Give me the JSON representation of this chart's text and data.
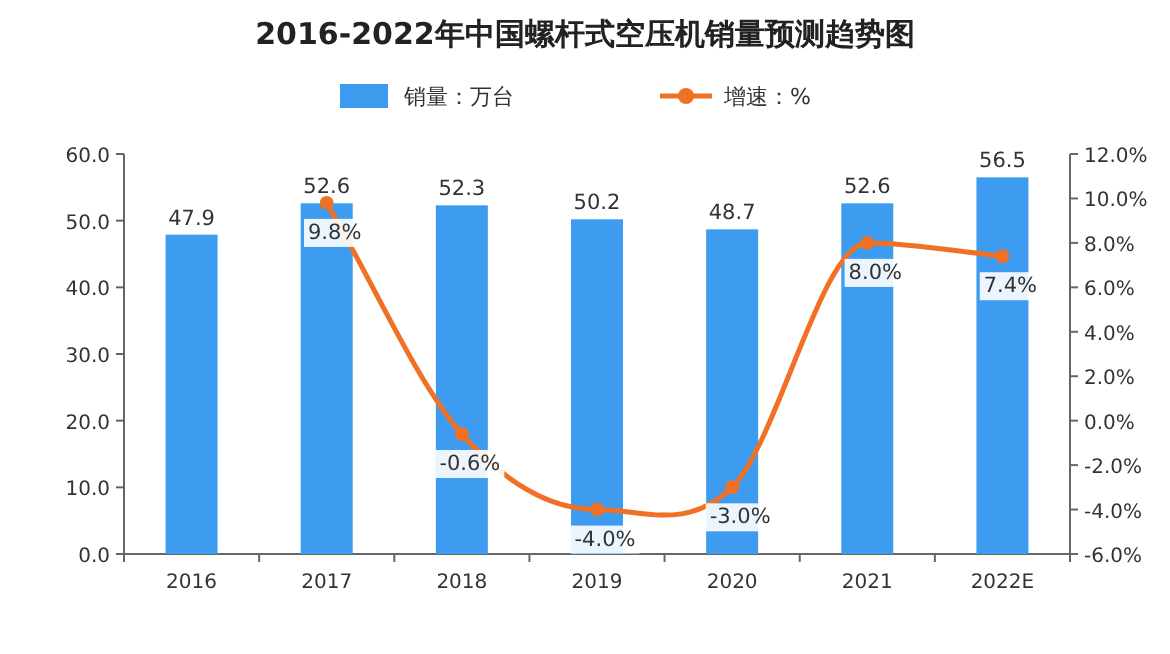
{
  "chart_data": {
    "type": "bar",
    "title": "2016-2022年中国螺杆式空压机销量预测趋势图",
    "categories": [
      "2016",
      "2017",
      "2018",
      "2019",
      "2020",
      "2021",
      "2022E"
    ],
    "series": [
      {
        "name": "销量：万台",
        "color": "#3d9cf0",
        "values": [
          47.9,
          52.6,
          52.3,
          50.2,
          48.7,
          52.6,
          56.5
        ]
      },
      {
        "name": "增速：%",
        "type": "line",
        "axis": "y2",
        "color": "#f07125",
        "marker": "circle",
        "values": [
          null,
          9.8,
          -0.6,
          -4.0,
          -3.0,
          8.0,
          7.4
        ],
        "value_labels": [
          null,
          "9.8%",
          "-0.6%",
          "-4.0%",
          "-3.0%",
          "8.0%",
          "7.4%"
        ]
      }
    ],
    "data_labels": true,
    "ylim": [
      0,
      60
    ],
    "yticks": [
      {
        "value": 0,
        "label": "0.0"
      },
      {
        "value": 10,
        "label": "10.0"
      },
      {
        "value": 20,
        "label": "20.0"
      },
      {
        "value": 30,
        "label": "30.0"
      },
      {
        "value": 40,
        "label": "40.0"
      },
      {
        "value": 50,
        "label": "50.0"
      },
      {
        "value": 60,
        "label": "60.0"
      }
    ],
    "y2lim": [
      -6,
      12
    ],
    "y2ticks": [
      {
        "value": -6,
        "label": "-6.0%"
      },
      {
        "value": -4,
        "label": "-4.0%"
      },
      {
        "value": -2,
        "label": "-2.0%"
      },
      {
        "value": 0,
        "label": "0.0%"
      },
      {
        "value": 2,
        "label": "2.0%"
      },
      {
        "value": 4,
        "label": "4.0%"
      },
      {
        "value": 6,
        "label": "6.0%"
      },
      {
        "value": 8,
        "label": "8.0%"
      },
      {
        "value": 10,
        "label": "10.0%"
      },
      {
        "value": 12,
        "label": "12.0%"
      }
    ],
    "legend": "top",
    "grid": false
  }
}
